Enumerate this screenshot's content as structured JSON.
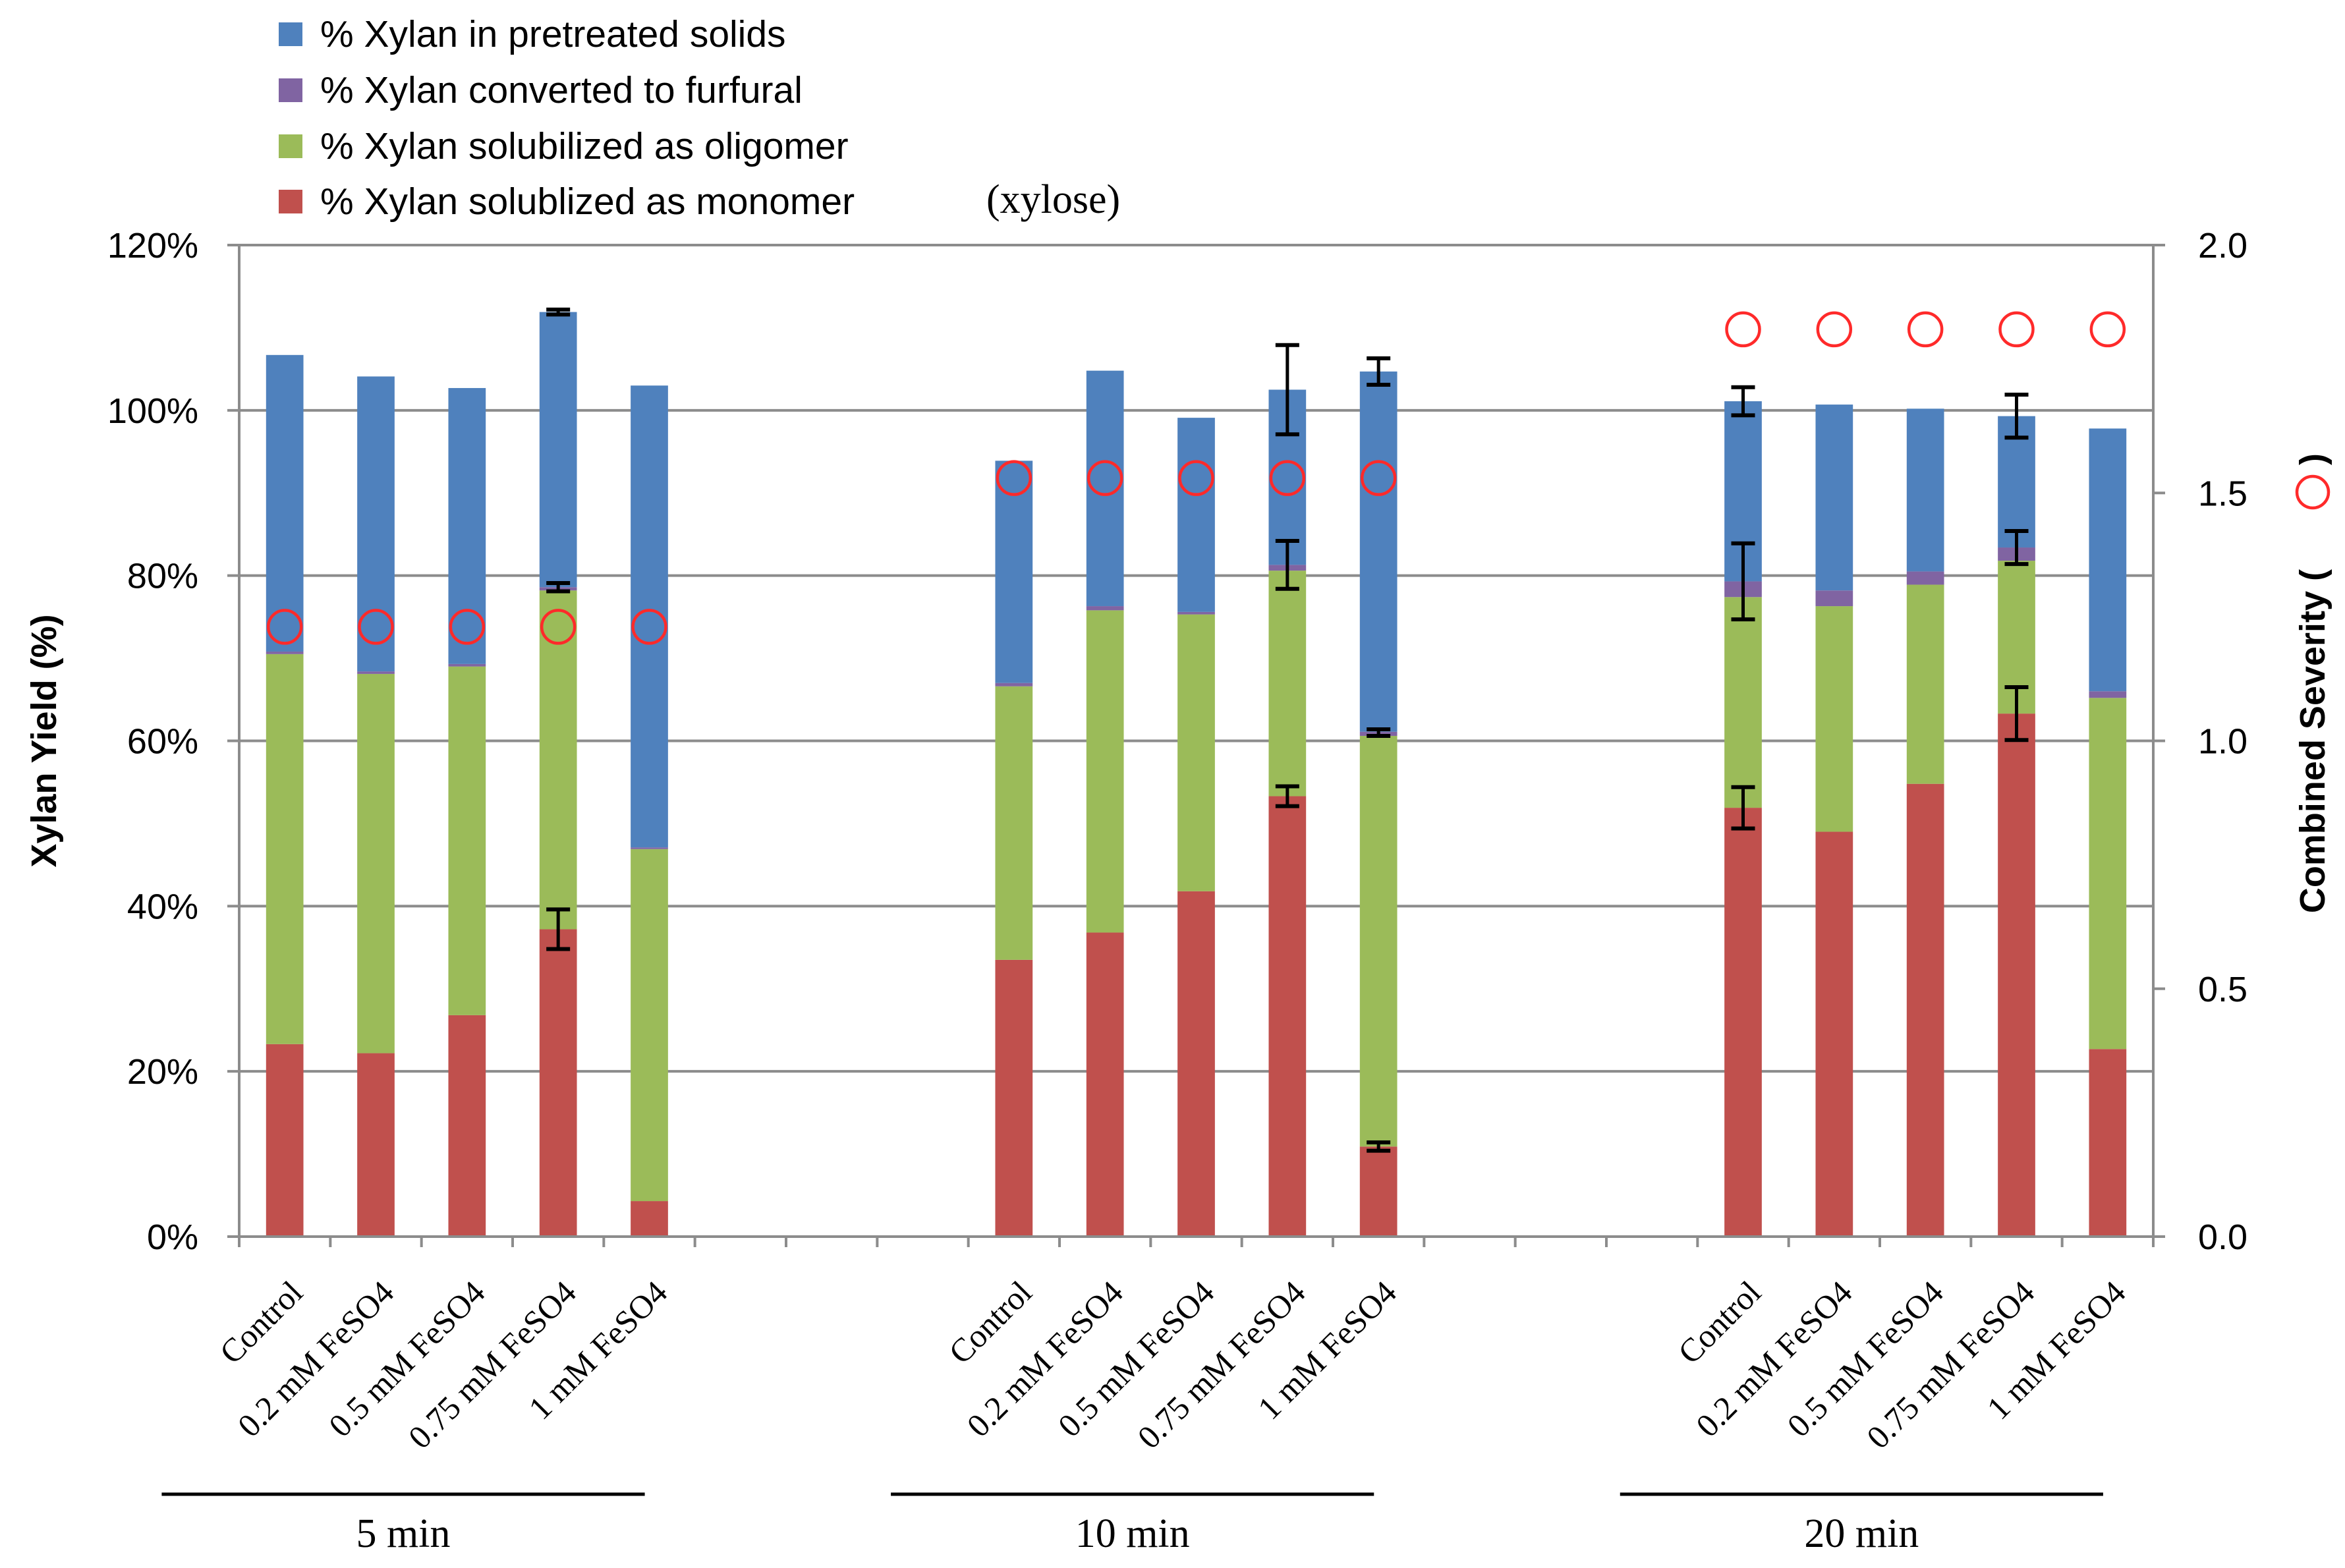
{
  "chart_data": {
    "type": "bar",
    "stacked": true,
    "legend": {
      "placement": "top-left",
      "entries": [
        {
          "key": "solids",
          "label": "% Xylan in pretreated solids",
          "color": "#4F81BD"
        },
        {
          "key": "furfural",
          "label": "% Xylan converted to furfural",
          "color": "#8064A2"
        },
        {
          "key": "oligomer",
          "label": "% Xylan solubilized as oligomer",
          "color": "#9BBB59"
        },
        {
          "key": "monomer",
          "label": "% Xylan solublized as monomer",
          "color": "#C0504D",
          "suffix": "(xylose)"
        }
      ]
    },
    "ylabel": "Xylan Yield (%)",
    "y2label": "Combined Severity (",
    "y2label_suffix": ")",
    "ylim": [
      0,
      120
    ],
    "y2lim": [
      0,
      2.0
    ],
    "yticks": [
      "0%",
      "20%",
      "40%",
      "60%",
      "80%",
      "100%",
      "120%"
    ],
    "y2ticks": [
      "0.0",
      "0.5",
      "1.0",
      "1.5",
      "2.0"
    ],
    "gridlines": true,
    "groups": [
      {
        "label": "5 min",
        "severity": 1.23,
        "bars": [
          {
            "category": "Control",
            "monomer": 23.3,
            "oligomer": 47.2,
            "furfural": 0.3,
            "solids": 35.9,
            "err": []
          },
          {
            "category": "0.2 mM FeSO4",
            "monomer": 22.2,
            "oligomer": 45.9,
            "furfural": 0.3,
            "solids": 35.7,
            "err": []
          },
          {
            "category": "0.5 mM FeSO4",
            "monomer": 26.8,
            "oligomer": 42.2,
            "furfural": 0.3,
            "solids": 33.4,
            "err": []
          },
          {
            "category": "0.75 mM FeSO4",
            "monomer": 37.2,
            "oligomer": 41.0,
            "furfural": 0.4,
            "solids": 33.3,
            "err": [
              {
                "y": 37.2,
                "e": 2.4
              },
              {
                "y": 78.6,
                "e": 0.5
              },
              {
                "y": 111.9,
                "e": 0.3
              }
            ]
          },
          {
            "category": "1 mM FeSO4",
            "monomer": 4.3,
            "oligomer": 42.6,
            "furfural": 0.2,
            "solids": 55.9,
            "err": []
          }
        ]
      },
      {
        "label": "10 min",
        "severity": 1.53,
        "bars": [
          {
            "category": "Control",
            "monomer": 33.5,
            "oligomer": 33.1,
            "furfural": 0.4,
            "solids": 26.9,
            "err": []
          },
          {
            "category": "0.2 mM FeSO4",
            "monomer": 36.8,
            "oligomer": 39.0,
            "furfural": 0.5,
            "solids": 28.5,
            "err": []
          },
          {
            "category": "0.5 mM FeSO4",
            "monomer": 41.8,
            "oligomer": 33.5,
            "furfural": 0.3,
            "solids": 23.5,
            "err": []
          },
          {
            "category": "0.75 mM FeSO4",
            "monomer": 53.3,
            "oligomer": 27.3,
            "furfural": 0.7,
            "solids": 21.2,
            "err": [
              {
                "y": 53.3,
                "e": 1.2
              },
              {
                "y": 81.3,
                "e": 2.9
              },
              {
                "y": 102.5,
                "e": 5.4
              }
            ]
          },
          {
            "category": "1 mM FeSO4",
            "monomer": 10.9,
            "oligomer": 49.7,
            "furfural": 0.5,
            "solids": 43.6,
            "err": [
              {
                "y": 10.9,
                "e": 0.5
              },
              {
                "y": 61.0,
                "e": 0.4
              },
              {
                "y": 104.7,
                "e": 1.6
              }
            ]
          }
        ]
      },
      {
        "label": "20 min",
        "severity": 1.83,
        "bars": [
          {
            "category": "Control",
            "monomer": 51.9,
            "oligomer": 25.5,
            "furfural": 1.9,
            "solids": 21.8,
            "err": [
              {
                "y": 51.9,
                "e": 2.5
              },
              {
                "y": 79.3,
                "e": 4.6
              },
              {
                "y": 101.1,
                "e": 1.7
              }
            ]
          },
          {
            "category": "0.2 mM FeSO4",
            "monomer": 49.0,
            "oligomer": 27.3,
            "furfural": 1.9,
            "solids": 22.5,
            "err": []
          },
          {
            "category": "0.5 mM FeSO4",
            "monomer": 54.8,
            "oligomer": 24.1,
            "furfural": 1.6,
            "solids": 19.7,
            "err": []
          },
          {
            "category": "0.75 mM FeSO4",
            "monomer": 63.3,
            "oligomer": 18.5,
            "furfural": 1.6,
            "solids": 15.9,
            "err": [
              {
                "y": 63.3,
                "e": 3.2
              },
              {
                "y": 83.4,
                "e": 2.0
              },
              {
                "y": 99.3,
                "e": 2.6
              }
            ]
          },
          {
            "category": "1 mM FeSO4",
            "monomer": 22.7,
            "oligomer": 42.5,
            "furfural": 0.8,
            "solids": 31.8,
            "err": []
          }
        ]
      }
    ]
  }
}
